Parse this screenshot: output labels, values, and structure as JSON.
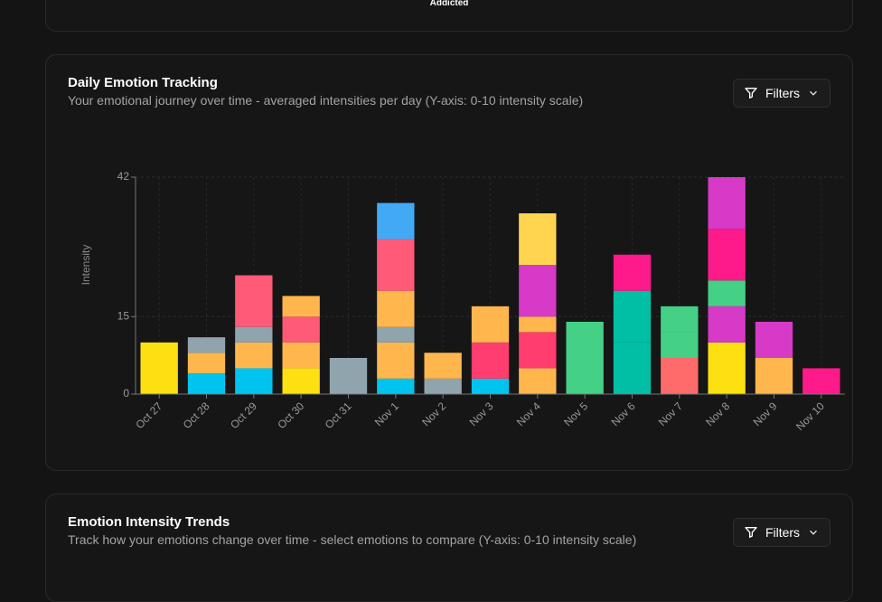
{
  "top_card": {
    "label": "Addicted"
  },
  "chart_card": {
    "title": "Daily Emotion Tracking",
    "subtitle": "Your emotional journey over time - averaged intensities per day (Y-axis: 0-10 intensity scale)",
    "button": "Filters"
  },
  "trends_card": {
    "title": "Emotion Intensity Trends",
    "subtitle": "Track how your emotions change over time - select emotions to compare (Y-axis: 0-10 intensity scale)",
    "button": "Filters"
  },
  "chart_data": {
    "type": "stacked_bar",
    "y_label": "Intensity",
    "ylim": [
      0,
      42
    ],
    "yticks": [
      0,
      15,
      42
    ],
    "grid": true,
    "categories": [
      "Oct 27",
      "Oct 28",
      "Oct 29",
      "Oct 30",
      "Oct 31",
      "Nov 1",
      "Nov 2",
      "Nov 3",
      "Nov 4",
      "Nov 5",
      "Nov 6",
      "Nov 7",
      "Nov 8",
      "Nov 9",
      "Nov 10"
    ],
    "stacks": [
      [
        {
          "value": 10,
          "color": "#fde012"
        }
      ],
      [
        {
          "value": 4,
          "color": "#00c4ef"
        },
        {
          "value": 4,
          "color": "#ffb74d"
        },
        {
          "value": 3,
          "color": "#90a4ae"
        }
      ],
      [
        {
          "value": 5,
          "color": "#00c4ef"
        },
        {
          "value": 5,
          "color": "#ffb74d"
        },
        {
          "value": 3,
          "color": "#90a4ae"
        },
        {
          "value": 10,
          "color": "#ff5a78"
        }
      ],
      [
        {
          "value": 5,
          "color": "#fde012"
        },
        {
          "value": 5,
          "color": "#ffb74d"
        },
        {
          "value": 5,
          "color": "#ff5a78"
        },
        {
          "value": 4,
          "color": "#ffb74d"
        }
      ],
      [
        {
          "value": 7,
          "color": "#90a4ae"
        }
      ],
      [
        {
          "value": 3,
          "color": "#00c4ef"
        },
        {
          "value": 7,
          "color": "#ffb74d"
        },
        {
          "value": 3,
          "color": "#90a4ae"
        },
        {
          "value": 7,
          "color": "#ffb74d"
        },
        {
          "value": 10,
          "color": "#ff5a78"
        },
        {
          "value": 7,
          "color": "#42aaf5"
        }
      ],
      [
        {
          "value": 3,
          "color": "#90a4ae"
        },
        {
          "value": 5,
          "color": "#ffb74d"
        }
      ],
      [
        {
          "value": 3,
          "color": "#00c4ef"
        },
        {
          "value": 7,
          "color": "#ff3d6e"
        },
        {
          "value": 7,
          "color": "#ffb74d"
        }
      ],
      [
        {
          "value": 5,
          "color": "#ffb74d"
        },
        {
          "value": 7,
          "color": "#ff3d6e"
        },
        {
          "value": 3,
          "color": "#ffb74d"
        },
        {
          "value": 10,
          "color": "#d63ac7"
        },
        {
          "value": 10,
          "color": "#ffd54f"
        }
      ],
      [
        {
          "value": 14,
          "color": "#44d185"
        }
      ],
      [
        {
          "value": 10,
          "color": "#00bfa5"
        },
        {
          "value": 10,
          "color": "#00bfa5"
        },
        {
          "value": 7,
          "color": "#ff1a8c"
        }
      ],
      [
        {
          "value": 7,
          "color": "#ff6b6b"
        },
        {
          "value": 5,
          "color": "#44d185"
        },
        {
          "value": 5,
          "color": "#44d185"
        }
      ],
      [
        {
          "value": 10,
          "color": "#fde012"
        },
        {
          "value": 7,
          "color": "#d63ac7"
        },
        {
          "value": 5,
          "color": "#44d185"
        },
        {
          "value": 10,
          "color": "#ff1a8c"
        },
        {
          "value": 10,
          "color": "#d63ac7"
        }
      ],
      [
        {
          "value": 7,
          "color": "#ffb74d"
        },
        {
          "value": 7,
          "color": "#d63ac7"
        }
      ],
      [
        {
          "value": 5,
          "color": "#ff1a8c"
        }
      ]
    ]
  }
}
